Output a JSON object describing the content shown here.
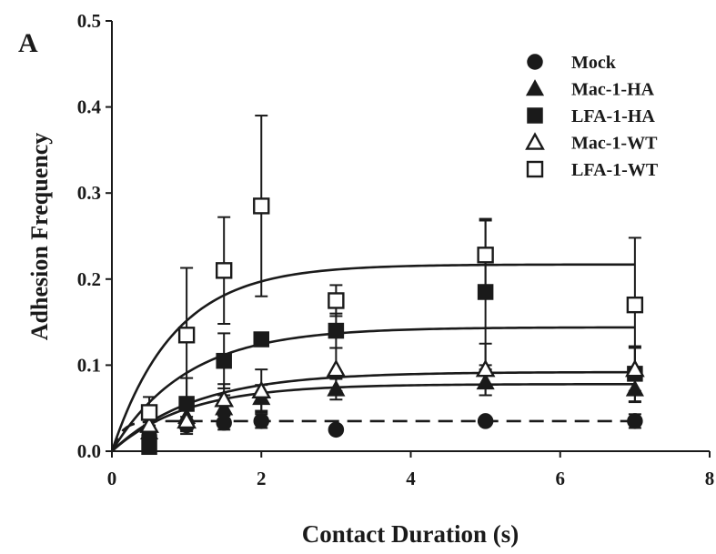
{
  "chart_data": {
    "type": "scatter",
    "panel_label": "A",
    "xlabel": "Contact Duration (s)",
    "ylabel": "Adhesion Frequency",
    "xlim": [
      0,
      8
    ],
    "ylim": [
      0,
      0.5
    ],
    "xticks": [
      "0",
      "2",
      "4",
      "6",
      "8"
    ],
    "yticks": [
      "0.0",
      "0.1",
      "0.2",
      "0.3",
      "0.4",
      "0.5"
    ],
    "legend_position": "top-right",
    "grid": false,
    "series": [
      {
        "name": "Mock",
        "marker": "filled-circle",
        "points": [
          {
            "x": 0.5,
            "y": 0.018,
            "err": 0.006
          },
          {
            "x": 1.0,
            "y": 0.03,
            "err": 0.01
          },
          {
            "x": 1.5,
            "y": 0.033,
            "err": 0.008
          },
          {
            "x": 2.0,
            "y": 0.035,
            "err": 0.008
          },
          {
            "x": 3.0,
            "y": 0.025,
            "err": 0.0
          },
          {
            "x": 5.0,
            "y": 0.035,
            "err": 0.0
          },
          {
            "x": 7.0,
            "y": 0.035,
            "err": 0.008
          }
        ],
        "fit": {
          "amplitude": 0.035,
          "rate": 8.0,
          "style": "dashed"
        }
      },
      {
        "name": "Mac-1-HA",
        "marker": "filled-triangle",
        "points": [
          {
            "x": 0.5,
            "y": 0.022,
            "err": 0.008
          },
          {
            "x": 1.0,
            "y": 0.04,
            "err": 0.012
          },
          {
            "x": 1.5,
            "y": 0.05,
            "err": 0.015
          },
          {
            "x": 2.0,
            "y": 0.062,
            "err": 0.015
          },
          {
            "x": 3.0,
            "y": 0.072,
            "err": 0.012
          },
          {
            "x": 5.0,
            "y": 0.08,
            "err": 0.015
          },
          {
            "x": 7.0,
            "y": 0.072,
            "err": 0.015
          }
        ],
        "fit": {
          "amplitude": 0.078,
          "rate": 1.0,
          "style": "solid"
        }
      },
      {
        "name": "LFA-1-HA",
        "marker": "filled-square",
        "points": [
          {
            "x": 0.5,
            "y": 0.005,
            "err": 0.005
          },
          {
            "x": 1.0,
            "y": 0.055,
            "err": 0.03
          },
          {
            "x": 1.5,
            "y": 0.105,
            "err": 0.032
          },
          {
            "x": 2.0,
            "y": 0.13,
            "err": 0.0
          },
          {
            "x": 3.0,
            "y": 0.14,
            "err": 0.02
          },
          {
            "x": 5.0,
            "y": 0.185,
            "err": 0.085
          },
          {
            "x": 7.0,
            "y": 0.09,
            "err": 0.032
          }
        ],
        "fit": {
          "amplitude": 0.144,
          "rate": 1.0,
          "style": "solid"
        }
      },
      {
        "name": "Mac-1-WT",
        "marker": "open-triangle",
        "points": [
          {
            "x": 0.5,
            "y": 0.03,
            "err": 0.01
          },
          {
            "x": 1.0,
            "y": 0.035,
            "err": 0.012
          },
          {
            "x": 1.5,
            "y": 0.06,
            "err": 0.018
          },
          {
            "x": 2.0,
            "y": 0.07,
            "err": 0.025
          },
          {
            "x": 3.0,
            "y": 0.095,
            "err": 0.025
          },
          {
            "x": 5.0,
            "y": 0.095,
            "err": 0.03
          },
          {
            "x": 7.0,
            "y": 0.095,
            "err": 0.025
          }
        ],
        "fit": {
          "amplitude": 0.092,
          "rate": 0.9,
          "style": "solid"
        }
      },
      {
        "name": "LFA-1-WT",
        "marker": "open-square",
        "points": [
          {
            "x": 0.5,
            "y": 0.045,
            "err": 0.018
          },
          {
            "x": 1.0,
            "y": 0.135,
            "err": 0.078
          },
          {
            "x": 1.5,
            "y": 0.21,
            "err": 0.062
          },
          {
            "x": 2.0,
            "y": 0.285,
            "err": 0.105
          },
          {
            "x": 3.0,
            "y": 0.175,
            "err": 0.018
          },
          {
            "x": 5.0,
            "y": 0.228,
            "err": 0.04
          },
          {
            "x": 7.0,
            "y": 0.17,
            "err": 0.078
          }
        ],
        "fit": {
          "amplitude": 0.217,
          "rate": 1.2,
          "style": "solid"
        }
      }
    ]
  }
}
